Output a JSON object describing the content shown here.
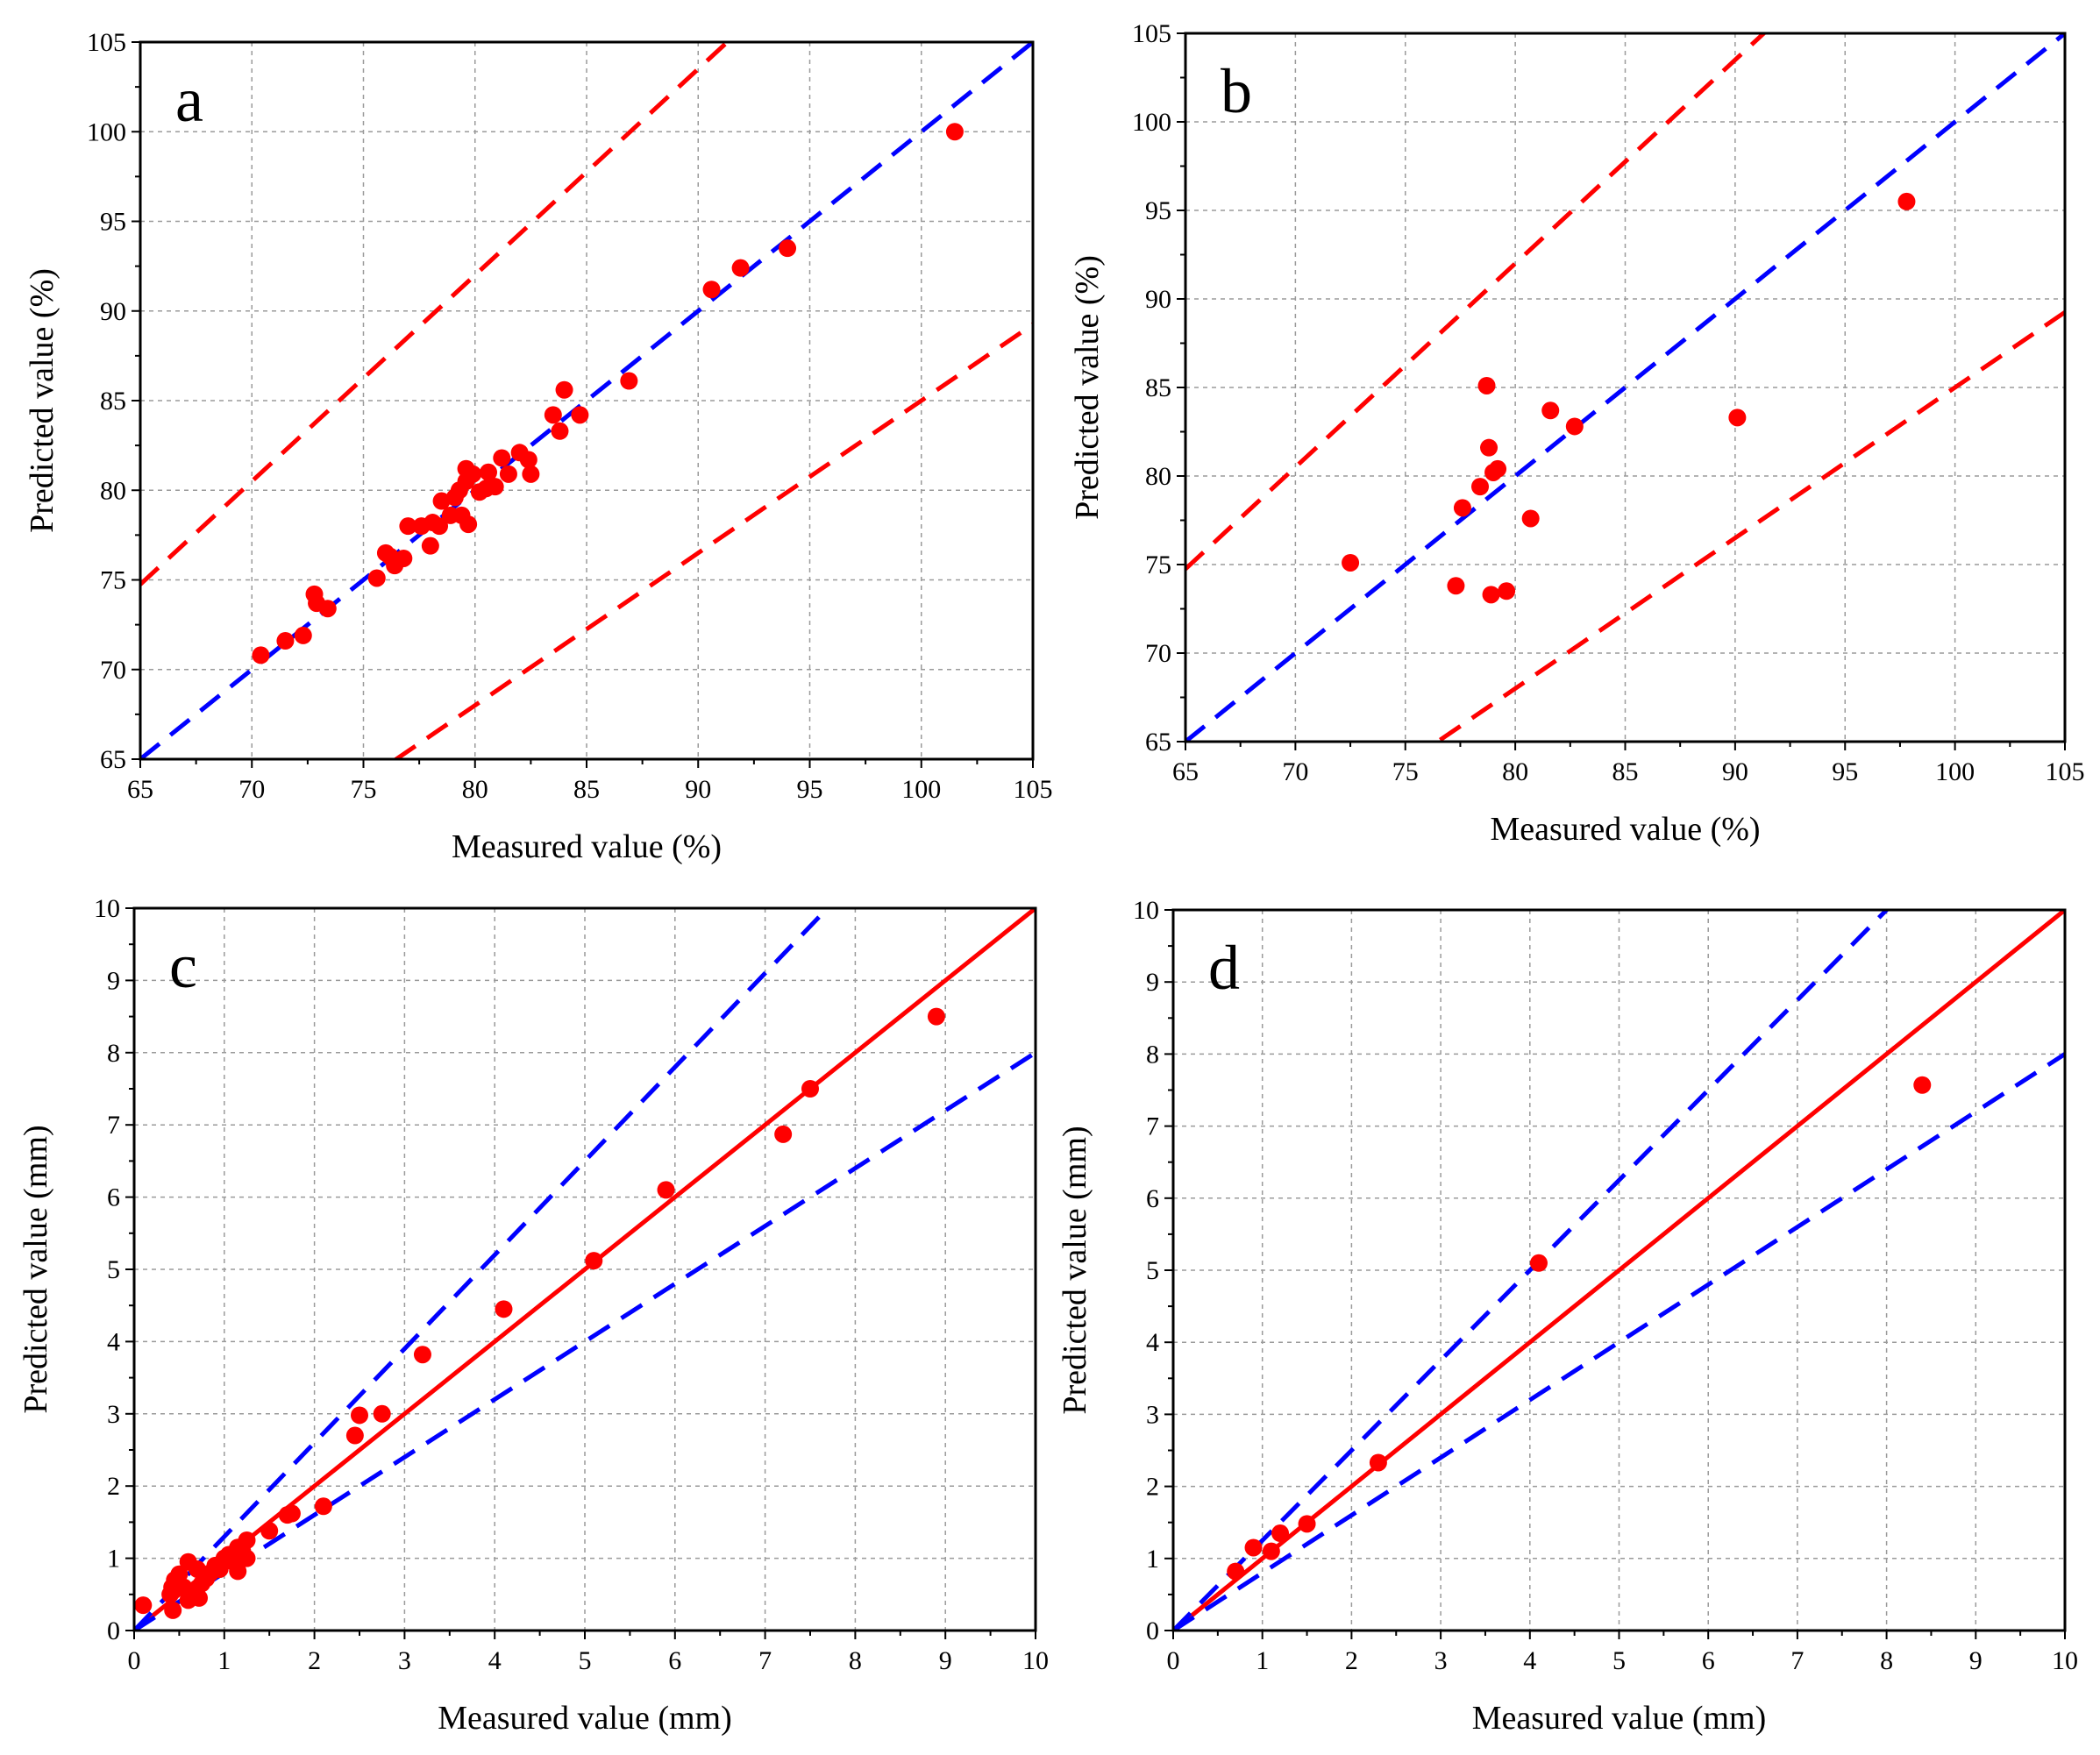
{
  "chart_data": [
    {
      "type": "scatter",
      "panel_label": "a",
      "xlabel": "Measured value (%)",
      "ylabel": "Predicted value (%)",
      "xlim": [
        65,
        105
      ],
      "ylim": [
        65,
        105
      ],
      "xticks": [
        65,
        70,
        75,
        80,
        85,
        90,
        95,
        100,
        105
      ],
      "yticks": [
        65,
        70,
        75,
        80,
        85,
        90,
        95,
        100,
        105
      ],
      "xtick_labels": [
        "65",
        "70",
        "75",
        "80",
        "85",
        "90",
        "95",
        "100",
        "105"
      ],
      "ytick_labels": [
        "65",
        "70",
        "75",
        "80",
        "85",
        "90",
        "95",
        "100",
        "105"
      ],
      "grid": true,
      "reference_lines": [
        {
          "name": "y = x",
          "slope": 1.0,
          "color": "#0000ff",
          "style": "dashed"
        },
        {
          "name": "y = 1.15x",
          "slope": 1.15,
          "color": "#ff0000",
          "style": "dashed"
        },
        {
          "name": "y = 0.85x",
          "slope": 0.85,
          "color": "#ff0000",
          "style": "dashed"
        }
      ],
      "marker_color": "#ff0000",
      "points": [
        [
          70.4,
          70.8
        ],
        [
          71.5,
          71.6
        ],
        [
          72.3,
          71.9
        ],
        [
          72.8,
          74.2
        ],
        [
          72.9,
          73.7
        ],
        [
          73.4,
          73.4
        ],
        [
          75.6,
          75.1
        ],
        [
          76.0,
          76.5
        ],
        [
          76.2,
          76.3
        ],
        [
          76.4,
          75.8
        ],
        [
          76.8,
          76.2
        ],
        [
          77.0,
          78.0
        ],
        [
          77.6,
          78.0
        ],
        [
          78.0,
          76.9
        ],
        [
          78.1,
          78.2
        ],
        [
          78.4,
          78.0
        ],
        [
          78.5,
          79.4
        ],
        [
          78.9,
          78.6
        ],
        [
          79.1,
          79.6
        ],
        [
          79.3,
          80.0
        ],
        [
          79.4,
          78.6
        ],
        [
          79.6,
          80.5
        ],
        [
          79.6,
          81.2
        ],
        [
          79.7,
          78.1
        ],
        [
          79.9,
          80.9
        ],
        [
          80.2,
          79.9
        ],
        [
          80.5,
          80.1
        ],
        [
          80.6,
          81.0
        ],
        [
          80.9,
          80.2
        ],
        [
          81.2,
          81.8
        ],
        [
          81.5,
          80.9
        ],
        [
          82.0,
          82.1
        ],
        [
          82.4,
          81.7
        ],
        [
          82.5,
          80.9
        ],
        [
          83.5,
          84.2
        ],
        [
          83.8,
          83.3
        ],
        [
          84.0,
          85.6
        ],
        [
          84.7,
          84.2
        ],
        [
          86.9,
          86.1
        ],
        [
          90.6,
          91.2
        ],
        [
          91.9,
          92.4
        ],
        [
          94.0,
          93.5
        ],
        [
          101.5,
          100.0
        ]
      ]
    },
    {
      "type": "scatter",
      "panel_label": "b",
      "xlabel": "Measured value (%)",
      "ylabel": "Predicted value (%)",
      "xlim": [
        65,
        105
      ],
      "ylim": [
        65,
        105
      ],
      "xticks": [
        65,
        70,
        75,
        80,
        85,
        90,
        95,
        100,
        105
      ],
      "yticks": [
        65,
        70,
        75,
        80,
        85,
        90,
        95,
        100,
        105
      ],
      "xtick_labels": [
        "65",
        "70",
        "75",
        "80",
        "85",
        "90",
        "95",
        "100",
        "105"
      ],
      "ytick_labels": [
        "65",
        "70",
        "75",
        "80",
        "85",
        "90",
        "95",
        "100",
        "105"
      ],
      "grid": true,
      "reference_lines": [
        {
          "name": "y = x",
          "slope": 1.0,
          "color": "#0000ff",
          "style": "dashed"
        },
        {
          "name": "y = 1.15x",
          "slope": 1.15,
          "color": "#ff0000",
          "style": "dashed"
        },
        {
          "name": "y = 0.85x",
          "slope": 0.85,
          "color": "#ff0000",
          "style": "dashed"
        }
      ],
      "marker_color": "#ff0000",
      "points": [
        [
          72.5,
          75.1
        ],
        [
          77.3,
          73.8
        ],
        [
          77.6,
          78.2
        ],
        [
          78.4,
          79.4
        ],
        [
          78.7,
          85.1
        ],
        [
          78.8,
          81.6
        ],
        [
          78.9,
          73.3
        ],
        [
          79.0,
          80.2
        ],
        [
          79.2,
          80.4
        ],
        [
          79.6,
          73.5
        ],
        [
          80.7,
          77.6
        ],
        [
          81.6,
          83.7
        ],
        [
          82.7,
          82.8
        ],
        [
          90.1,
          83.3
        ],
        [
          97.8,
          95.5
        ]
      ]
    },
    {
      "type": "scatter",
      "panel_label": "c",
      "xlabel": "Measured value (mm)",
      "ylabel": "Predicted value (mm)",
      "xlim": [
        0,
        10
      ],
      "ylim": [
        0,
        10
      ],
      "xticks": [
        0,
        1,
        2,
        3,
        4,
        5,
        6,
        7,
        8,
        9,
        10
      ],
      "yticks": [
        0,
        1,
        2,
        3,
        4,
        5,
        6,
        7,
        8,
        9,
        10
      ],
      "xtick_labels": [
        "0",
        "1",
        "2",
        "3",
        "4",
        "5",
        "6",
        "7",
        "8",
        "9",
        "10"
      ],
      "ytick_labels": [
        "0",
        "1",
        "2",
        "3",
        "4",
        "5",
        "6",
        "7",
        "8",
        "9",
        "10"
      ],
      "grid": true,
      "reference_lines": [
        {
          "name": "y = x",
          "slope": 1.0,
          "color": "#ff0000",
          "style": "solid"
        },
        {
          "name": "y = 1.3x",
          "slope": 1.3,
          "color": "#0000ff",
          "style": "dashed"
        },
        {
          "name": "y = 0.8x",
          "slope": 0.8,
          "color": "#0000ff",
          "style": "dashed"
        }
      ],
      "marker_color": "#ff0000",
      "points": [
        [
          0.1,
          0.35
        ],
        [
          0.4,
          0.5
        ],
        [
          0.42,
          0.6
        ],
        [
          0.45,
          0.7
        ],
        [
          0.43,
          0.28
        ],
        [
          0.5,
          0.78
        ],
        [
          0.55,
          0.6
        ],
        [
          0.6,
          0.95
        ],
        [
          0.6,
          0.42
        ],
        [
          0.65,
          0.5
        ],
        [
          0.7,
          0.85
        ],
        [
          0.72,
          0.45
        ],
        [
          0.75,
          0.65
        ],
        [
          0.8,
          0.72
        ],
        [
          0.85,
          0.8
        ],
        [
          0.9,
          0.9
        ],
        [
          0.95,
          0.85
        ],
        [
          1.0,
          1.0
        ],
        [
          1.05,
          1.05
        ],
        [
          1.1,
          0.95
        ],
        [
          1.15,
          1.15
        ],
        [
          1.15,
          0.82
        ],
        [
          1.2,
          1.1
        ],
        [
          1.25,
          1.25
        ],
        [
          1.25,
          1.0
        ],
        [
          1.5,
          1.38
        ],
        [
          1.7,
          1.6
        ],
        [
          1.75,
          1.62
        ],
        [
          2.1,
          1.72
        ],
        [
          2.45,
          2.7
        ],
        [
          2.5,
          2.98
        ],
        [
          2.75,
          3.0
        ],
        [
          3.2,
          3.82
        ],
        [
          4.1,
          4.45
        ],
        [
          5.1,
          5.12
        ],
        [
          5.9,
          6.1
        ],
        [
          7.2,
          6.87
        ],
        [
          7.5,
          7.5
        ],
        [
          8.9,
          8.5
        ]
      ]
    },
    {
      "type": "scatter",
      "panel_label": "d",
      "xlabel": "Measured value (mm)",
      "ylabel": "Predicted value (mm)",
      "xlim": [
        0,
        10
      ],
      "ylim": [
        0,
        10
      ],
      "xticks": [
        0,
        1,
        2,
        3,
        4,
        5,
        6,
        7,
        8,
        9,
        10
      ],
      "yticks": [
        0,
        1,
        2,
        3,
        4,
        5,
        6,
        7,
        8,
        9,
        10
      ],
      "xtick_labels": [
        "0",
        "1",
        "2",
        "3",
        "4",
        "5",
        "6",
        "7",
        "8",
        "9",
        "10"
      ],
      "ytick_labels": [
        "0",
        "1",
        "2",
        "3",
        "4",
        "5",
        "6",
        "7",
        "8",
        "9",
        "10"
      ],
      "grid": true,
      "reference_lines": [
        {
          "name": "y = x",
          "slope": 1.0,
          "color": "#ff0000",
          "style": "solid"
        },
        {
          "name": "y = 1.25x",
          "slope": 1.25,
          "color": "#0000ff",
          "style": "dashed"
        },
        {
          "name": "y = 0.8x",
          "slope": 0.8,
          "color": "#0000ff",
          "style": "dashed"
        }
      ],
      "marker_color": "#ff0000",
      "points": [
        [
          0.7,
          0.82
        ],
        [
          0.9,
          1.15
        ],
        [
          1.1,
          1.1
        ],
        [
          1.2,
          1.35
        ],
        [
          1.5,
          1.48
        ],
        [
          2.3,
          2.33
        ],
        [
          4.1,
          5.1
        ],
        [
          8.4,
          7.57
        ]
      ]
    }
  ]
}
